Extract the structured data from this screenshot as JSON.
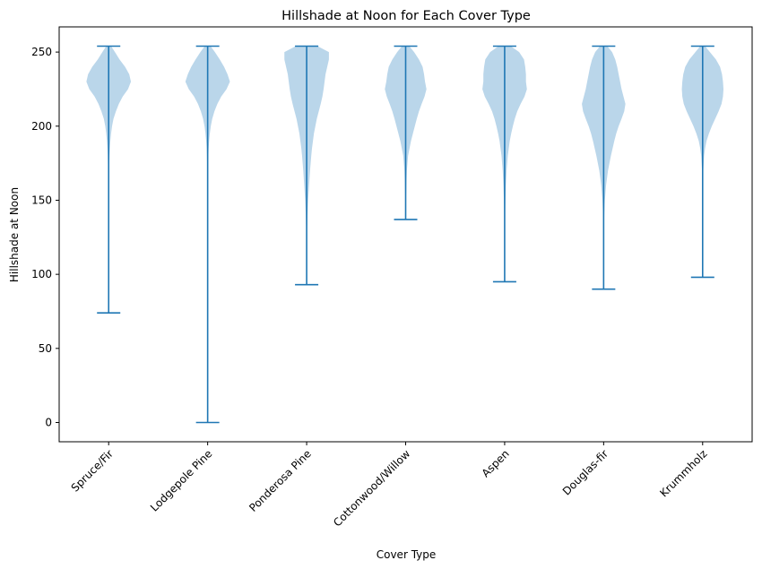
{
  "chart_data": {
    "type": "violin",
    "title": "Hillshade at Noon for Each Cover Type",
    "xlabel": "Cover Type",
    "ylabel": "Hillshade at Noon",
    "ylim": [
      -13,
      267
    ],
    "yticks": [
      0,
      50,
      100,
      150,
      200,
      250
    ],
    "grid": false,
    "colors": {
      "body": "#bad6ea",
      "line": "#1f77b4"
    },
    "categories": [
      "Spruce/Fir",
      "Lodgepole Pine",
      "Ponderosa Pine",
      "Cottonwood/Willow",
      "Aspen",
      "Douglas-fir",
      "Krummholz"
    ],
    "series": [
      {
        "min": 74,
        "max": 254,
        "profile": [
          [
            254,
            0.1
          ],
          [
            250,
            0.26
          ],
          [
            245,
            0.45
          ],
          [
            240,
            0.68
          ],
          [
            235,
            0.85
          ],
          [
            230,
            0.92
          ],
          [
            225,
            0.8
          ],
          [
            220,
            0.58
          ],
          [
            215,
            0.42
          ],
          [
            210,
            0.3
          ],
          [
            205,
            0.2
          ],
          [
            200,
            0.14
          ],
          [
            195,
            0.1
          ],
          [
            190,
            0.07
          ],
          [
            185,
            0.05
          ],
          [
            180,
            0.035
          ],
          [
            170,
            0.02
          ],
          [
            160,
            0.012
          ],
          [
            150,
            0.008
          ],
          [
            120,
            0.004
          ],
          [
            74,
            0.002
          ]
        ]
      },
      {
        "min": 0,
        "max": 254,
        "profile": [
          [
            254,
            0.12
          ],
          [
            250,
            0.3
          ],
          [
            245,
            0.5
          ],
          [
            240,
            0.68
          ],
          [
            235,
            0.82
          ],
          [
            230,
            0.92
          ],
          [
            225,
            0.78
          ],
          [
            220,
            0.56
          ],
          [
            215,
            0.4
          ],
          [
            210,
            0.28
          ],
          [
            205,
            0.19
          ],
          [
            200,
            0.13
          ],
          [
            195,
            0.09
          ],
          [
            190,
            0.06
          ],
          [
            185,
            0.04
          ],
          [
            180,
            0.03
          ],
          [
            170,
            0.015
          ],
          [
            160,
            0.01
          ],
          [
            140,
            0.006
          ],
          [
            100,
            0.003
          ],
          [
            0,
            0.002
          ]
        ]
      },
      {
        "min": 93,
        "max": 254,
        "profile": [
          [
            254,
            0.45
          ],
          [
            250,
            0.92
          ],
          [
            245,
            0.92
          ],
          [
            240,
            0.85
          ],
          [
            235,
            0.78
          ],
          [
            230,
            0.74
          ],
          [
            225,
            0.7
          ],
          [
            220,
            0.65
          ],
          [
            215,
            0.58
          ],
          [
            210,
            0.5
          ],
          [
            205,
            0.42
          ],
          [
            200,
            0.36
          ],
          [
            195,
            0.3
          ],
          [
            190,
            0.26
          ],
          [
            185,
            0.22
          ],
          [
            180,
            0.19
          ],
          [
            170,
            0.14
          ],
          [
            160,
            0.1
          ],
          [
            150,
            0.06
          ],
          [
            140,
            0.035
          ],
          [
            130,
            0.015
          ],
          [
            110,
            0.006
          ],
          [
            93,
            0.003
          ]
        ]
      },
      {
        "min": 137,
        "max": 254,
        "profile": [
          [
            254,
            0.15
          ],
          [
            250,
            0.35
          ],
          [
            245,
            0.55
          ],
          [
            240,
            0.7
          ],
          [
            235,
            0.76
          ],
          [
            230,
            0.8
          ],
          [
            225,
            0.86
          ],
          [
            220,
            0.78
          ],
          [
            215,
            0.66
          ],
          [
            210,
            0.55
          ],
          [
            205,
            0.46
          ],
          [
            200,
            0.38
          ],
          [
            195,
            0.3
          ],
          [
            190,
            0.22
          ],
          [
            185,
            0.16
          ],
          [
            180,
            0.1
          ],
          [
            170,
            0.05
          ],
          [
            160,
            0.03
          ],
          [
            150,
            0.015
          ],
          [
            137,
            0.005
          ]
        ]
      },
      {
        "min": 95,
        "max": 254,
        "profile": [
          [
            254,
            0.25
          ],
          [
            250,
            0.6
          ],
          [
            245,
            0.8
          ],
          [
            240,
            0.85
          ],
          [
            235,
            0.88
          ],
          [
            230,
            0.88
          ],
          [
            225,
            0.92
          ],
          [
            220,
            0.82
          ],
          [
            215,
            0.66
          ],
          [
            210,
            0.52
          ],
          [
            205,
            0.42
          ],
          [
            200,
            0.34
          ],
          [
            195,
            0.27
          ],
          [
            190,
            0.21
          ],
          [
            185,
            0.17
          ],
          [
            180,
            0.13
          ],
          [
            170,
            0.08
          ],
          [
            160,
            0.05
          ],
          [
            150,
            0.03
          ],
          [
            140,
            0.015
          ],
          [
            120,
            0.007
          ],
          [
            95,
            0.003
          ]
        ]
      },
      {
        "min": 90,
        "max": 254,
        "profile": [
          [
            254,
            0.15
          ],
          [
            250,
            0.35
          ],
          [
            245,
            0.48
          ],
          [
            240,
            0.56
          ],
          [
            235,
            0.62
          ],
          [
            230,
            0.68
          ],
          [
            225,
            0.74
          ],
          [
            220,
            0.82
          ],
          [
            215,
            0.9
          ],
          [
            210,
            0.85
          ],
          [
            205,
            0.74
          ],
          [
            200,
            0.62
          ],
          [
            195,
            0.52
          ],
          [
            190,
            0.44
          ],
          [
            185,
            0.37
          ],
          [
            180,
            0.3
          ],
          [
            170,
            0.18
          ],
          [
            160,
            0.1
          ],
          [
            150,
            0.05
          ],
          [
            140,
            0.025
          ],
          [
            120,
            0.008
          ],
          [
            90,
            0.003
          ]
        ]
      },
      {
        "min": 98,
        "max": 254,
        "profile": [
          [
            254,
            0.1
          ],
          [
            250,
            0.3
          ],
          [
            245,
            0.55
          ],
          [
            240,
            0.72
          ],
          [
            235,
            0.8
          ],
          [
            230,
            0.84
          ],
          [
            225,
            0.86
          ],
          [
            220,
            0.84
          ],
          [
            215,
            0.78
          ],
          [
            210,
            0.66
          ],
          [
            205,
            0.52
          ],
          [
            200,
            0.38
          ],
          [
            195,
            0.26
          ],
          [
            190,
            0.16
          ],
          [
            185,
            0.1
          ],
          [
            180,
            0.06
          ],
          [
            170,
            0.025
          ],
          [
            160,
            0.012
          ],
          [
            140,
            0.006
          ],
          [
            120,
            0.004
          ],
          [
            98,
            0.002
          ]
        ]
      }
    ]
  }
}
